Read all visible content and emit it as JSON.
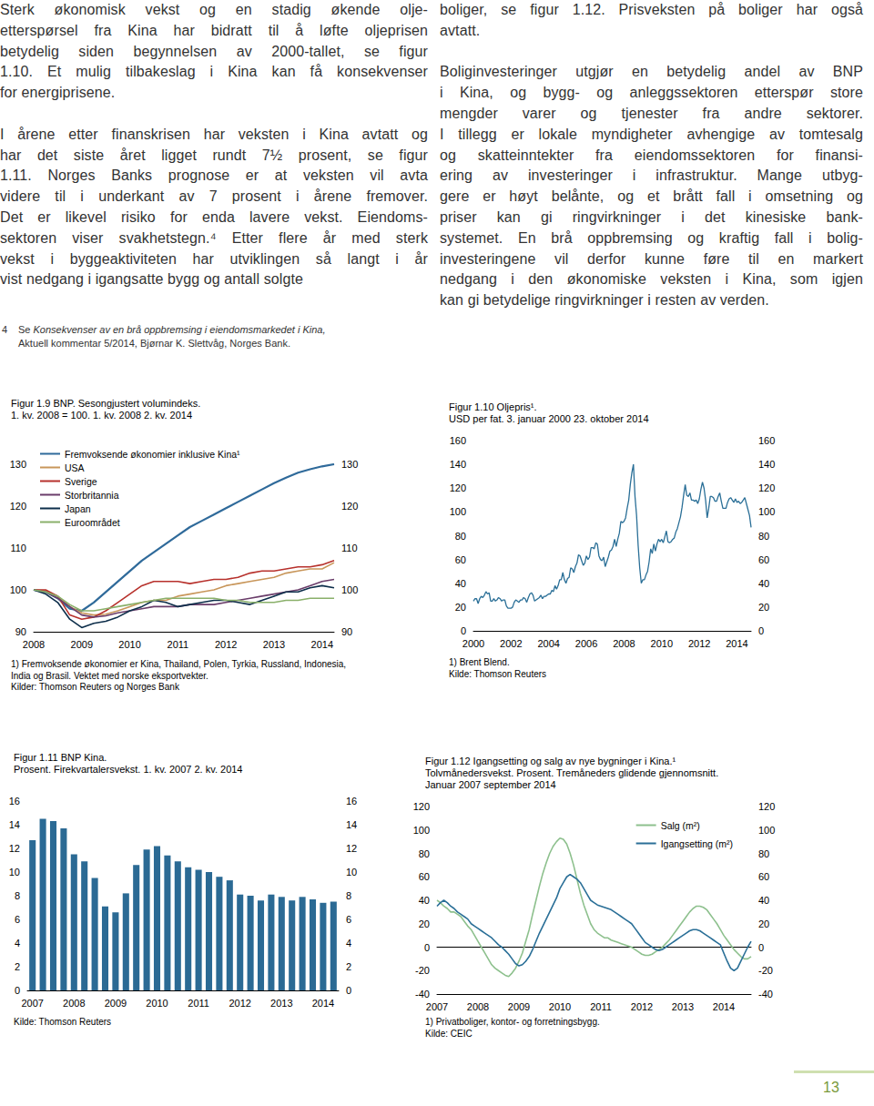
{
  "document": {
    "columns": [
      {
        "paragraphs": [
          [
            "Sterk økonomisk vekst og en stadig økende olje-",
            "etterspørsel fra Kina har bidratt til å løfte oljeprisen",
            "betydelig siden begynnelsen av 2000-tallet, se figur",
            "1.10. Et mulig tilbakeslag i Kina kan få konsekvenser",
            "for energiprisene."
          ],
          [
            "I årene etter finanskrisen har veksten i Kina avtatt og",
            "har det siste året ligget rundt 7½ prosent, se figur",
            "1.11. Norges Banks prognose er at veksten vil avta",
            "videre til i underkant av 7 prosent i årene fremover.",
            "Det er likevel risiko for enda lavere vekst. Eiendoms-",
            "sektoren viser svakhetstegn.⁴ Etter flere år med sterk",
            "vekst i byggeaktiviteten har utviklingen så langt i år",
            "vist nedgang i igangsatte bygg og antall solgte"
          ]
        ]
      },
      {
        "paragraphs": [
          [
            "boliger, se figur 1.12. Prisveksten på boliger har også",
            "avtatt."
          ],
          [
            "Boliginvesteringer utgjør en betydelig andel av BNP",
            "i Kina, og bygg- og anleggssektoren etterspør store",
            "mengder varer og tjenester fra andre sektorer.",
            "I tillegg er lokale myndigheter avhengige av tomtesalg",
            "og skatteinntekter fra eiendomssektoren for finansi-",
            "ering av investeringer i infrastruktur. Mange utbyg-",
            "gere er høyt belånte, og et brått fall i omsetning og",
            "priser kan gi ringvirkninger i det kinesiske bank-",
            "systemet. En brå oppbremsing og kraftig fall i bolig-",
            "investeringene vil derfor kunne føre til en markert",
            "nedgang i den økonomiske veksten i Kina, som igjen",
            "kan gi betydelige ringvirkninger i resten av verden."
          ]
        ]
      }
    ],
    "footnote": {
      "number": "4",
      "prefix": "Se ",
      "title": "Konsekvenser av en brå oppbremsing i eiendomsmarkedet i Kina,",
      "rest": "Aktuell kommentar 5/2014, Bjørnar K. Slettvåg, Norges Bank."
    },
    "page_number": "13"
  },
  "chart_data": [
    {
      "type": "line",
      "title": "Figur 1.9 BNP. Sesongjustert volumindeks.",
      "subtitle": [
        "1. kv. 2008 = 100. 1. kv. 2008 2. kv. 2014"
      ],
      "notes": [
        "1) Fremvoksende økonomier er Kina, Thailand, Polen, Tyrkia, Russland, Indonesia,",
        "India og Brasil. Vektet med norske eksportvekter.",
        "Kilder: Thomson Reuters og Norges Bank"
      ],
      "categories": [
        "2008",
        null,
        null,
        null,
        "2009",
        null,
        null,
        null,
        "2010",
        null,
        null,
        null,
        "2011",
        null,
        null,
        null,
        "2012",
        null,
        null,
        null,
        "2013",
        null,
        null,
        null,
        "2014",
        null
      ],
      "series": [
        {
          "name": "Fremvoksende økonomier inklusive Kina¹",
          "color": "#2f6a9a",
          "values": [
            100,
            99.5,
            98,
            95.5,
            95,
            97,
            99.5,
            102,
            104.5,
            107,
            109,
            111,
            113,
            115,
            116.5,
            118,
            119.5,
            121,
            122.5,
            124,
            125.5,
            126.8,
            128,
            128.8,
            129.5,
            130
          ]
        },
        {
          "name": "USA",
          "color": "#c8965a",
          "values": [
            100,
            99.8,
            98.5,
            96,
            94.5,
            94,
            94.2,
            95,
            96,
            97,
            97.5,
            97.5,
            98.5,
            99,
            99.5,
            100,
            101,
            101.5,
            102,
            102.5,
            103,
            104,
            104.5,
            105,
            105,
            106.5
          ]
        },
        {
          "name": "Sverige",
          "color": "#b7312c",
          "values": [
            100,
            100,
            98.5,
            94,
            93,
            93.5,
            95,
            97,
            99,
            101,
            102,
            102,
            102,
            101.5,
            102,
            102.5,
            102.5,
            103,
            104,
            104.5,
            104.5,
            105,
            105.5,
            105.5,
            106,
            107
          ]
        },
        {
          "name": "Storbritannia",
          "color": "#6a3d6a",
          "values": [
            100,
            99.5,
            98,
            96,
            94,
            93.5,
            93.8,
            94.5,
            95,
            95.5,
            96,
            96,
            96,
            96.5,
            96.5,
            96.5,
            97,
            97.5,
            98,
            98.5,
            99,
            99.5,
            100,
            101,
            102,
            102.5
          ]
        },
        {
          "name": "Japan",
          "color": "#0d2e4a",
          "values": [
            100,
            99,
            97,
            93,
            91,
            92,
            92.5,
            93.5,
            95,
            96,
            97.5,
            97,
            96,
            96.5,
            97,
            97.5,
            97.5,
            97,
            96.5,
            97.5,
            98.5,
            99.5,
            99.5,
            100.5,
            101,
            100.5
          ]
        },
        {
          "name": "Euroområdet",
          "color": "#8ab06a",
          "values": [
            100,
            99.5,
            98.5,
            96.5,
            95,
            95,
            95.5,
            96,
            96.5,
            97,
            97.5,
            98,
            98,
            98,
            98,
            98,
            97.5,
            97.5,
            97,
            97,
            97,
            97.5,
            97.5,
            98,
            98,
            98
          ]
        }
      ],
      "ylim": [
        90,
        130
      ],
      "yticks": [
        90,
        100,
        110,
        120,
        130
      ],
      "y2lim": [
        90,
        130
      ],
      "y2ticks": [
        90,
        100,
        110,
        120,
        130
      ],
      "grid": false,
      "legend": "upper left"
    },
    {
      "type": "line",
      "title": "Figur 1.10 Oljepris¹.",
      "subtitle": [
        "USD per fat. 3. januar 2000 23. oktober 2014"
      ],
      "notes": [
        "1) Brent Blend.",
        "Kilde: Thomson Reuters"
      ],
      "categories": [
        "2000",
        null,
        null,
        null,
        null,
        null,
        null,
        null,
        null,
        null,
        null,
        null,
        null,
        null,
        null,
        null,
        null,
        null,
        null,
        null,
        null,
        null,
        null,
        null,
        "2002",
        null,
        null,
        null,
        null,
        null,
        null,
        null,
        null,
        null,
        null,
        null,
        null,
        null,
        null,
        null,
        null,
        null,
        null,
        null,
        null,
        null,
        null,
        null,
        "2004",
        null,
        null,
        null,
        null,
        null,
        null,
        null,
        null,
        null,
        null,
        null,
        null,
        null,
        null,
        null,
        null,
        null,
        null,
        null,
        null,
        null,
        null,
        null,
        "2006",
        null,
        null,
        null,
        null,
        null,
        null,
        null,
        null,
        null,
        null,
        null,
        null,
        null,
        null,
        null,
        null,
        null,
        null,
        null,
        null,
        null,
        null,
        null,
        "2008",
        null,
        null,
        null,
        null,
        null,
        null,
        null,
        null,
        null,
        null,
        null,
        null,
        null,
        null,
        null,
        null,
        null,
        null,
        null,
        null,
        null,
        null,
        null,
        "2010",
        null,
        null,
        null,
        null,
        null,
        null,
        null,
        null,
        null,
        null,
        null,
        null,
        null,
        null,
        null,
        null,
        null,
        null,
        null,
        null,
        null,
        null,
        null,
        "2012",
        null,
        null,
        null,
        null,
        null,
        null,
        null,
        null,
        null,
        null,
        null,
        null,
        null,
        null,
        null,
        null,
        null,
        null,
        null,
        null,
        null,
        null,
        null,
        "2014",
        null,
        null,
        null,
        null,
        null,
        null,
        null,
        null,
        null
      ],
      "values": [
        25,
        27,
        27,
        23,
        27,
        29,
        28,
        30,
        33,
        31,
        32,
        25,
        25,
        27,
        25,
        26,
        28,
        27,
        25,
        26,
        26,
        21,
        19,
        19,
        19,
        20,
        24,
        26,
        25,
        24,
        26,
        26,
        28,
        27,
        24,
        28,
        31,
        32,
        30,
        25,
        26,
        27,
        28,
        30,
        27,
        29,
        29,
        30,
        31,
        31,
        34,
        33,
        38,
        35,
        38,
        43,
        43,
        49,
        43,
        40,
        44,
        45,
        53,
        52,
        49,
        54,
        57,
        64,
        63,
        59,
        55,
        57,
        63,
        60,
        62,
        70,
        70,
        69,
        74,
        73,
        63,
        60,
        59,
        62,
        54,
        58,
        62,
        67,
        68,
        71,
        77,
        71,
        77,
        82,
        92,
        91,
        92,
        95,
        103,
        110,
        123,
        133,
        140,
        113,
        97,
        72,
        53,
        40,
        43,
        43,
        47,
        50,
        58,
        69,
        65,
        73,
        67,
        73,
        77,
        75,
        77,
        74,
        79,
        84,
        75,
        74,
        75,
        77,
        78,
        83,
        86,
        91,
        96,
        104,
        114,
        123,
        114,
        113,
        116,
        110,
        110,
        109,
        110,
        107,
        111,
        119,
        125,
        120,
        110,
        95,
        103,
        113,
        113,
        112,
        109,
        109,
        113,
        116,
        109,
        103,
        103,
        103,
        108,
        111,
        112,
        110,
        108,
        111,
        108,
        109,
        107,
        108,
        110,
        112,
        107,
        102,
        97,
        87
      ],
      "color": "#2a6f97",
      "ylim": [
        0,
        160
      ],
      "yticks": [
        0,
        20,
        40,
        60,
        80,
        100,
        120,
        140,
        160
      ],
      "y2lim": [
        0,
        160
      ],
      "y2ticks": [
        0,
        20,
        40,
        60,
        80,
        100,
        120,
        140,
        160
      ],
      "grid": false
    },
    {
      "type": "bar",
      "title": "Figur 1.11 BNP Kina.",
      "subtitle": [
        "Prosent. Firekvartalersvekst. 1. kv. 2007 2. kv. 2014"
      ],
      "notes": [
        "Kilde: Thomson Reuters"
      ],
      "categories": [
        "2007",
        null,
        null,
        null,
        "2008",
        null,
        null,
        null,
        "2009",
        null,
        null,
        null,
        "2010",
        null,
        null,
        null,
        "2011",
        null,
        null,
        null,
        "2012",
        null,
        null,
        null,
        "2013",
        null,
        null,
        null,
        "2014",
        null
      ],
      "values": [
        12.7,
        14.5,
        14.3,
        13.7,
        11.5,
        10.9,
        9.5,
        7.1,
        6.6,
        8.2,
        10.6,
        11.9,
        12.2,
        11.4,
        10.9,
        10.4,
        10.2,
        10.0,
        9.6,
        9.3,
        8.1,
        8.0,
        7.6,
        8.1,
        7.9,
        7.6,
        7.9,
        7.7,
        7.4,
        7.5
      ],
      "color": "#2b6a94",
      "ylim": [
        0,
        16
      ],
      "yticks": [
        0,
        2,
        4,
        6,
        8,
        10,
        12,
        14,
        16
      ],
      "y2lim": [
        0,
        16
      ],
      "y2ticks": [
        0,
        2,
        4,
        6,
        8,
        10,
        12,
        14,
        16
      ],
      "grid": false
    },
    {
      "type": "line",
      "title": "Figur 1.12 Igangsetting og salg av nye bygninger i Kina.¹",
      "subtitle": [
        "Tolvmånedersvekst. Prosent. Tremåneders glidende gjennomsnitt.",
        "Januar 2007 september 2014"
      ],
      "notes": [
        "1) Privatboliger, kontor- og forretningsbygg.",
        "Kilde: CEIC"
      ],
      "categories": [
        "2007",
        null,
        null,
        null,
        null,
        null,
        null,
        null,
        null,
        null,
        null,
        null,
        "2008",
        null,
        null,
        null,
        null,
        null,
        null,
        null,
        null,
        null,
        null,
        null,
        "2009",
        null,
        null,
        null,
        null,
        null,
        null,
        null,
        null,
        null,
        null,
        null,
        "2010",
        null,
        null,
        null,
        null,
        null,
        null,
        null,
        null,
        null,
        null,
        null,
        "2011",
        null,
        null,
        null,
        null,
        null,
        null,
        null,
        null,
        null,
        null,
        null,
        "2012",
        null,
        null,
        null,
        null,
        null,
        null,
        null,
        null,
        null,
        null,
        null,
        "2013",
        null,
        null,
        null,
        null,
        null,
        null,
        null,
        null,
        null,
        null,
        null,
        "2014",
        null,
        null,
        null,
        null,
        null,
        null,
        null,
        null
      ],
      "series": [
        {
          "name": "Salg (m²)",
          "color": "#8dc08d",
          "values": [
            40,
            38,
            35,
            33,
            30,
            30,
            28,
            26,
            22,
            18,
            15,
            10,
            5,
            0,
            -5,
            -10,
            -15,
            -18,
            -20,
            -22,
            -24,
            -25,
            -22,
            -18,
            -12,
            -5,
            5,
            15,
            28,
            40,
            52,
            63,
            72,
            80,
            86,
            90,
            93,
            92,
            88,
            80,
            70,
            58,
            46,
            36,
            28,
            20,
            15,
            12,
            10,
            8,
            8,
            6,
            5,
            4,
            3,
            2,
            1,
            0,
            -2,
            -4,
            -6,
            -7,
            -7,
            -6,
            -4,
            -2,
            0,
            3,
            6,
            10,
            14,
            18,
            22,
            26,
            30,
            33,
            35,
            35,
            34,
            32,
            28,
            24,
            20,
            15,
            10,
            6,
            2,
            -2,
            -5,
            -8,
            -10,
            -10,
            -8
          ]
        },
        {
          "name": "Igangsetting (m²)",
          "color": "#2a6f97",
          "values": [
            35,
            38,
            40,
            38,
            35,
            33,
            30,
            28,
            26,
            24,
            20,
            18,
            16,
            14,
            12,
            10,
            8,
            5,
            2,
            0,
            -3,
            -6,
            -10,
            -14,
            -16,
            -15,
            -12,
            -8,
            -2,
            5,
            12,
            18,
            24,
            30,
            36,
            42,
            50,
            55,
            60,
            62,
            60,
            58,
            55,
            50,
            45,
            40,
            38,
            36,
            35,
            34,
            33,
            32,
            30,
            28,
            26,
            24,
            22,
            20,
            16,
            12,
            8,
            4,
            2,
            0,
            -2,
            -3,
            -2,
            0,
            2,
            4,
            6,
            8,
            10,
            12,
            14,
            15,
            15,
            14,
            12,
            10,
            8,
            6,
            4,
            2,
            -5,
            -12,
            -18,
            -20,
            -18,
            -12,
            -6,
            0,
            5
          ]
        }
      ],
      "ylim": [
        -40,
        120
      ],
      "yticks": [
        -40,
        -20,
        0,
        20,
        40,
        60,
        80,
        100,
        120
      ],
      "y2lim": [
        -40,
        120
      ],
      "y2ticks": [
        -40,
        -20,
        0,
        20,
        40,
        60,
        80,
        100,
        120
      ],
      "grid": false,
      "legend": "upper right"
    }
  ]
}
